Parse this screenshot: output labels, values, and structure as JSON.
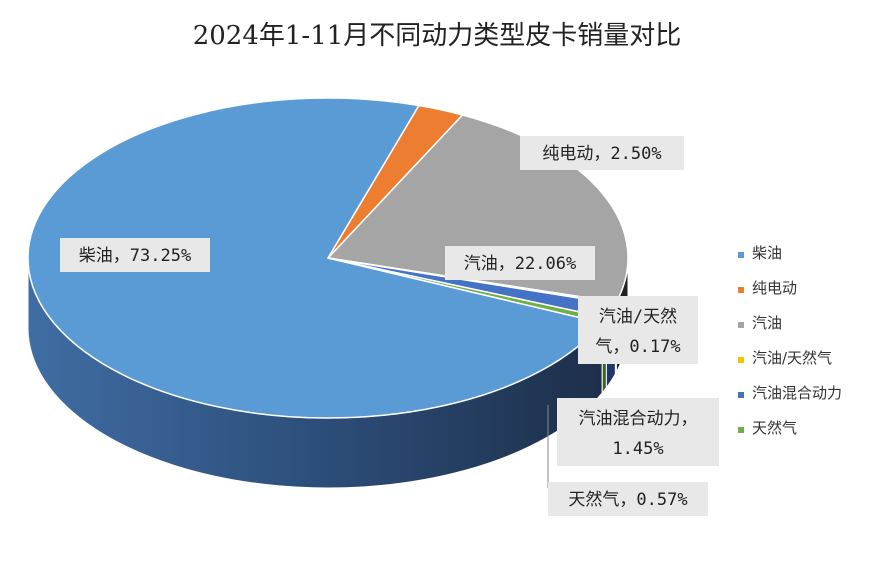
{
  "chart_data": {
    "type": "pie",
    "title": "2024年1-11月不同动力类型皮卡销量对比",
    "slices": [
      {
        "name": "柴油",
        "value": 73.25,
        "label": "柴油，73.25%",
        "color": "#5B9BD5",
        "side": "#2F4F78"
      },
      {
        "name": "纯电动",
        "value": 2.5,
        "label": "纯电动，2.50%",
        "color": "#ED7D31",
        "side": "#8A4A1E"
      },
      {
        "name": "汽油",
        "value": 22.06,
        "label": "汽油，22.06%",
        "color": "#A5A5A5",
        "side": "#222222"
      },
      {
        "name": "汽油/天然气",
        "value": 0.17,
        "label_line1": "汽油/天然",
        "label_line2": "气，0.17%",
        "color": "#FFC000",
        "side": "#8A6A00"
      },
      {
        "name": "汽油混合动力",
        "value": 1.45,
        "label_line1": "汽油混合动力，",
        "label_line2": "1.45%",
        "color": "#4472C4",
        "side": "#1F3566"
      },
      {
        "name": "天然气",
        "value": 0.57,
        "label": "天然气，0.57%",
        "color": "#70AD47",
        "side": "#3C6426"
      }
    ],
    "legend": [
      "柴油",
      "纯电动",
      "汽油",
      "汽油/天然气",
      "汽油混合动力",
      "天然气"
    ],
    "legend_position": "right"
  }
}
